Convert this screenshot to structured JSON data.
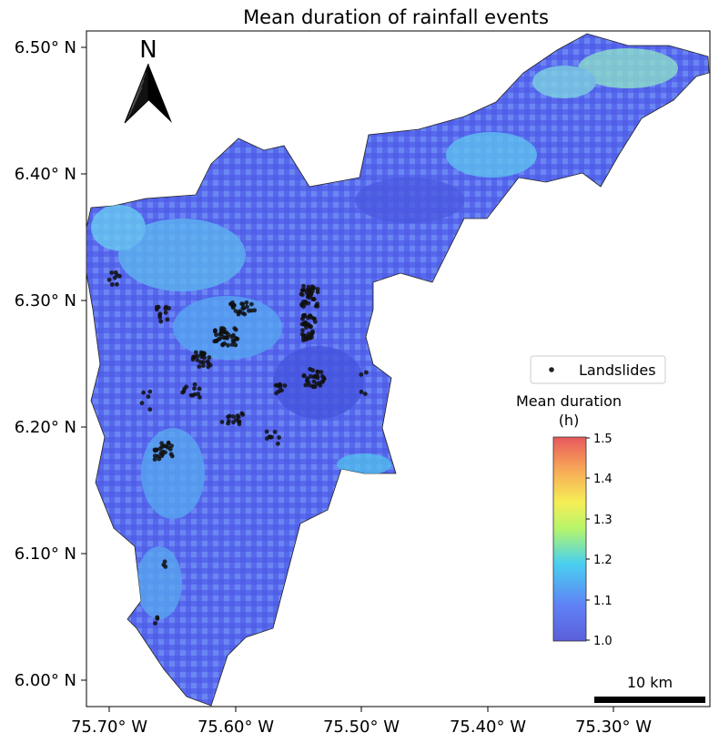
{
  "title": "Mean duration of rainfall events",
  "axes": {
    "x_ticks": [
      "75.70° W",
      "75.60° W",
      "75.50° W",
      "75.40° W",
      "75.30° W"
    ],
    "y_ticks": [
      "6.50° N",
      "6.40° N",
      "6.30° N",
      "6.20° N",
      "6.10° N",
      "6.00° N"
    ]
  },
  "north_arrow": {
    "label": "N",
    "icon": "north-arrow-icon"
  },
  "legend": {
    "entries": [
      {
        "label": "Landslides",
        "marker": "dot",
        "color": "#222222"
      }
    ]
  },
  "colorbar": {
    "title_line1": "Mean duration",
    "title_line2": "(h)",
    "min": 1.0,
    "max": 1.5,
    "tick_labels": [
      "1.5",
      "1.4",
      "1.3",
      "1.2",
      "1.1",
      "1.0"
    ],
    "colors": [
      "#5b5fd9",
      "#5f80f5",
      "#49d0f0",
      "#b5f56a",
      "#f6ee55",
      "#f7a957",
      "#e8585d"
    ]
  },
  "scale_bar": {
    "label": "10 km"
  },
  "colors": {
    "terrain_base": "#5c6df0",
    "landslide": "#111111"
  }
}
